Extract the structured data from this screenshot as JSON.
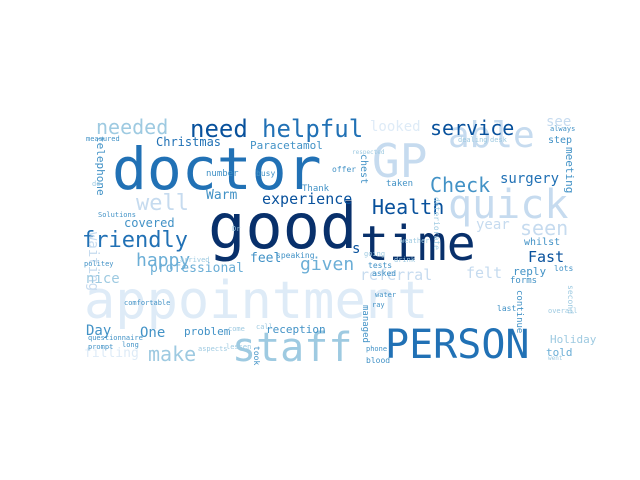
{
  "palette": {
    "darkest": "#08306b",
    "dark": "#08519c",
    "medium_dark": "#2171b5",
    "medium": "#4292c6",
    "light": "#6baed6",
    "lighter": "#9ecae1",
    "pale": "#c6dbef",
    "palest": "#deebf7",
    "faint": "#eef4fb"
  },
  "words": [
    {
      "text": "appointment",
      "shade": "palest",
      "vertical": false
    },
    {
      "text": "good",
      "shade": "darkest",
      "vertical": false
    },
    {
      "text": "doctor",
      "shade": "medium_dark",
      "vertical": false
    },
    {
      "text": "time",
      "shade": "darkest",
      "vertical": false
    },
    {
      "text": "GP",
      "shade": "pale",
      "vertical": false
    },
    {
      "text": "PERSON",
      "shade": "medium_dark",
      "vertical": false
    },
    {
      "text": "staff",
      "shade": "lighter",
      "vertical": false
    },
    {
      "text": "quick",
      "shade": "pale",
      "vertical": false
    },
    {
      "text": "able",
      "shade": "pale",
      "vertical": false
    },
    {
      "text": "helpful",
      "shade": "medium_dark",
      "vertical": false
    },
    {
      "text": "need",
      "shade": "dark",
      "vertical": false
    },
    {
      "text": "needed",
      "shade": "lighter",
      "vertical": false
    },
    {
      "text": "service",
      "shade": "dark",
      "vertical": false
    },
    {
      "text": "friendly",
      "shade": "medium_dark",
      "vertical": false
    },
    {
      "text": "Check",
      "shade": "medium",
      "vertical": false
    },
    {
      "text": "Health",
      "shade": "dark",
      "vertical": false
    },
    {
      "text": "well",
      "shade": "pale",
      "vertical": false
    },
    {
      "text": "seen",
      "shade": "pale",
      "vertical": false
    },
    {
      "text": "happy",
      "shade": "light",
      "vertical": false
    },
    {
      "text": "make",
      "shade": "lighter",
      "vertical": false
    },
    {
      "text": "given",
      "shade": "light",
      "vertical": false
    },
    {
      "text": "experience",
      "shade": "dark",
      "vertical": false
    },
    {
      "text": "surgery",
      "shade": "medium_dark",
      "vertical": false
    },
    {
      "text": "Fast",
      "shade": "dark",
      "vertical": false
    },
    {
      "text": "referral",
      "shade": "pale",
      "vertical": false
    },
    {
      "text": "professional",
      "shade": "light",
      "vertical": false
    },
    {
      "text": "covered",
      "shade": "medium",
      "vertical": false
    },
    {
      "text": "Christmas",
      "shade": "medium_dark",
      "vertical": false
    },
    {
      "text": "Paracetamol",
      "shade": "medium",
      "vertical": false
    },
    {
      "text": "waiting",
      "shade": "pale",
      "vertical": true
    },
    {
      "text": "looked",
      "shade": "palest",
      "vertical": false
    },
    {
      "text": "see",
      "shade": "pale",
      "vertical": false
    },
    {
      "text": "One",
      "shade": "medium",
      "vertical": false
    },
    {
      "text": "Day",
      "shade": "medium",
      "vertical": false
    },
    {
      "text": "filling",
      "shade": "palest",
      "vertical": false
    },
    {
      "text": "nice",
      "shade": "lighter",
      "vertical": false
    },
    {
      "text": "feel",
      "shade": "medium",
      "vertical": false
    },
    {
      "text": "Warm",
      "shade": "medium",
      "vertical": false
    },
    {
      "text": "year",
      "shade": "pale",
      "vertical": false
    },
    {
      "text": "felt",
      "shade": "pale",
      "vertical": false
    },
    {
      "text": "reply",
      "shade": "medium",
      "vertical": false
    },
    {
      "text": "told",
      "shade": "light",
      "vertical": false
    },
    {
      "text": "Holiday",
      "shade": "lighter",
      "vertical": false
    },
    {
      "text": "reception",
      "shade": "medium",
      "vertical": false
    },
    {
      "text": "problem",
      "shade": "medium",
      "vertical": false
    },
    {
      "text": "s",
      "shade": "dark",
      "vertical": false
    },
    {
      "text": "Thank",
      "shade": "medium",
      "vertical": false
    },
    {
      "text": "taken",
      "shade": "medium",
      "vertical": false
    },
    {
      "text": "step",
      "shade": "medium",
      "vertical": false
    },
    {
      "text": "always",
      "shade": "medium",
      "vertical": false
    },
    {
      "text": "whilst",
      "shade": "medium",
      "vertical": false
    },
    {
      "text": "meeting",
      "shade": "medium",
      "vertical": true
    },
    {
      "text": "number",
      "shade": "medium",
      "vertical": false
    },
    {
      "text": "busy",
      "shade": "medium",
      "vertical": false
    },
    {
      "text": "offer",
      "shade": "medium",
      "vertical": false
    },
    {
      "text": "chest",
      "shade": "medium",
      "vertical": true
    },
    {
      "text": "dealing",
      "shade": "lighter",
      "vertical": false
    },
    {
      "text": "desk",
      "shade": "lighter",
      "vertical": false
    },
    {
      "text": "telephone",
      "shade": "medium",
      "vertical": true
    },
    {
      "text": "measured",
      "shade": "medium",
      "vertical": false
    },
    {
      "text": "Solutions",
      "shade": "medium",
      "vertical": false
    },
    {
      "text": "speaking",
      "shade": "medium",
      "vertical": false
    },
    {
      "text": "call",
      "shade": "lighter",
      "vertical": false
    },
    {
      "text": "took",
      "shade": "medium",
      "vertical": true
    },
    {
      "text": "come",
      "shade": "lighter",
      "vertical": false
    },
    {
      "text": "phone",
      "shade": "medium",
      "vertical": false
    },
    {
      "text": "blood",
      "shade": "medium",
      "vertical": false
    },
    {
      "text": "water",
      "shade": "medium",
      "vertical": false
    },
    {
      "text": "ray",
      "shade": "medium",
      "vertical": false
    },
    {
      "text": "asked",
      "shade": "medium",
      "vertical": false
    },
    {
      "text": "managed",
      "shade": "medium",
      "vertical": true
    },
    {
      "text": "forms",
      "shade": "medium",
      "vertical": false
    },
    {
      "text": "last",
      "shade": "medium",
      "vertical": false
    },
    {
      "text": "lots",
      "shade": "medium",
      "vertical": false
    },
    {
      "text": "continue",
      "shade": "medium",
      "vertical": true
    },
    {
      "text": "comfortable",
      "shade": "medium",
      "vertical": false
    },
    {
      "text": "politey",
      "shade": "medium",
      "vertical": false
    },
    {
      "text": "questionnaire",
      "shade": "medium",
      "vertical": false
    },
    {
      "text": "prompt",
      "shade": "medium",
      "vertical": false
    },
    {
      "text": "long",
      "shade": "medium",
      "vertical": false
    },
    {
      "text": "arrived",
      "shade": "lighter",
      "vertical": false
    },
    {
      "text": "do",
      "shade": "lighter",
      "vertical": false
    },
    {
      "text": "Dr",
      "shade": "lighter",
      "vertical": false
    },
    {
      "text": "tests",
      "shade": "medium",
      "vertical": false
    },
    {
      "text": "respected",
      "shade": "lighter",
      "vertical": false
    },
    {
      "text": "deteriorate",
      "shade": "lighter",
      "vertical": true
    },
    {
      "text": "weather",
      "shade": "lighter",
      "vertical": false
    },
    {
      "text": "going",
      "shade": "lighter",
      "vertical": false
    },
    {
      "text": "drink",
      "shade": "lighter",
      "vertical": false
    },
    {
      "text": "second",
      "shade": "lighter",
      "vertical": true
    },
    {
      "text": "overall",
      "shade": "lighter",
      "vertical": false
    },
    {
      "text": "lessen",
      "shade": "lighter",
      "vertical": false
    },
    {
      "text": "aspects",
      "shade": "lighter",
      "vertical": false
    },
    {
      "text": "went",
      "shade": "lighter",
      "vertical": false
    }
  ]
}
